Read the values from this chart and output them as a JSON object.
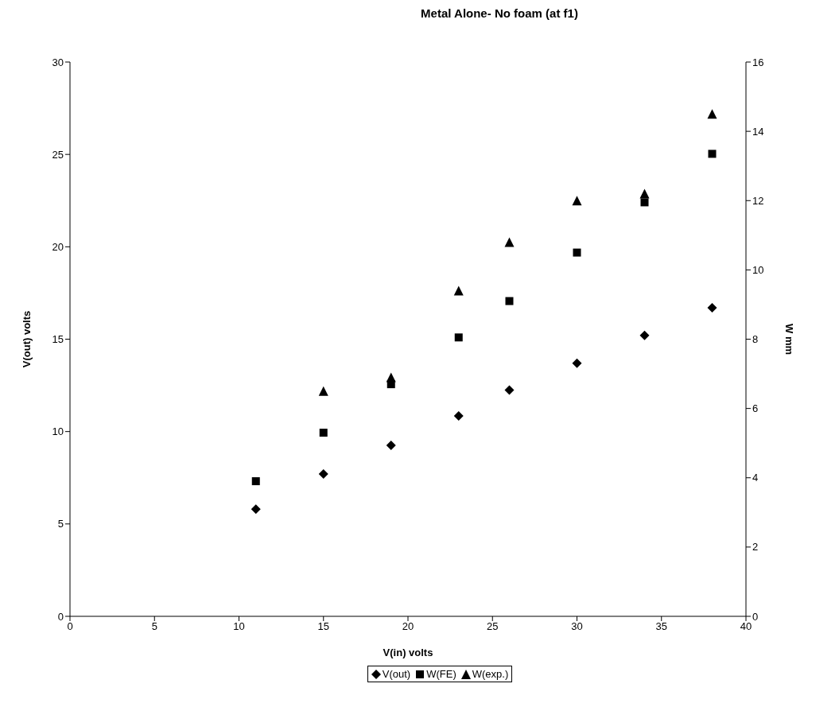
{
  "chart_data": {
    "type": "scatter",
    "title": "Metal Alone- No foam (at f1)",
    "xlabel": "V(in)  volts",
    "ylabel": "V(out)  volts",
    "y2label": "W mm",
    "x": [
      11,
      15,
      19,
      23,
      26,
      30,
      34,
      38
    ],
    "series": [
      {
        "name": "V(out)",
        "color": "#000000",
        "marker": "diamond",
        "values": [
          5.8,
          7.7,
          9.25,
          10.85,
          12.25,
          13.7,
          15.2,
          16.7
        ]
      },
      {
        "name": "W(FE)",
        "color": "#000000",
        "marker": "square",
        "axis": "y2",
        "values": [
          3.9,
          5.3,
          6.7,
          8.05,
          9.1,
          10.5,
          11.95,
          13.35
        ]
      },
      {
        "name": "W(exp.)",
        "color": "#000000",
        "marker": "triangle",
        "axis": "y2",
        "values": [
          null,
          6.5,
          6.9,
          9.4,
          10.8,
          12,
          12.2,
          14.5
        ]
      }
    ],
    "xlim": [
      0,
      40
    ],
    "xticks": [
      0,
      5,
      10,
      15,
      20,
      25,
      30,
      35,
      40
    ],
    "ylim": [
      0,
      30
    ],
    "yticks": [
      0,
      5,
      10,
      15,
      20,
      25,
      30
    ],
    "y2lim": [
      0,
      16
    ],
    "y2ticks": [
      0,
      2,
      4,
      6,
      8,
      10,
      12,
      14,
      16
    ],
    "grid": false,
    "legend": "bottom"
  }
}
